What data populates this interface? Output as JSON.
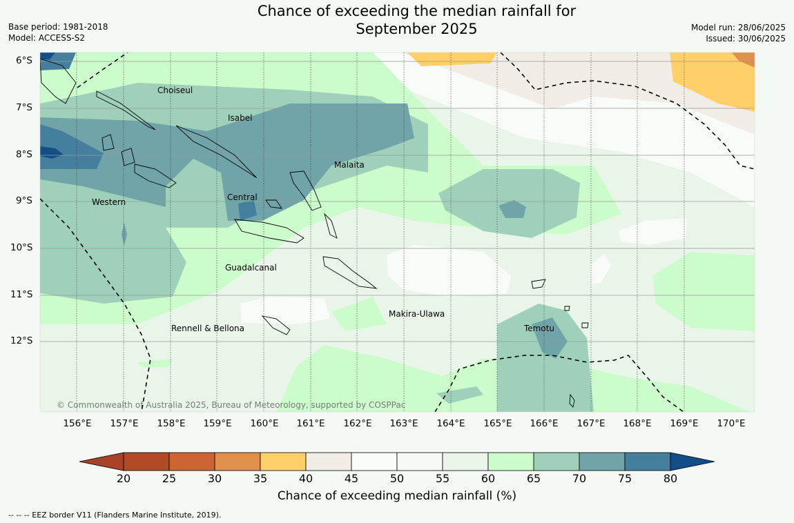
{
  "title_line1": "Chance of exceeding the median rainfall for",
  "title_line2": "September 2025",
  "base_period": "Base period: 1981-2018",
  "model": "Model: ACCESS-S2",
  "model_run": "Model run: 28/06/2025",
  "issued": "Issued: 30/06/2025",
  "lat_labels": [
    "6°S",
    "7°S",
    "8°S",
    "9°S",
    "10°S",
    "11°S",
    "12°S"
  ],
  "lon_labels": [
    "156°E",
    "157°E",
    "158°E",
    "159°E",
    "160°E",
    "161°E",
    "162°E",
    "163°E",
    "164°E",
    "165°E",
    "166°E",
    "167°E",
    "168°E",
    "169°E",
    "170°E"
  ],
  "regions": {
    "choiseul": "Choiseul",
    "isabel": "Isabel",
    "malaita": "Malaita",
    "central": "Central",
    "western": "Western",
    "guadalcanal": "Guadalcanal",
    "makira": "Makira-Ulawa",
    "temotu": "Temotu",
    "rennell": "Rennell & Bellona"
  },
  "copyright": "© Commonwealth of Australia 2025, Bureau of Meteorology, supported by COSPPac",
  "colorbar": {
    "ticks": [
      "20",
      "25",
      "30",
      "35",
      "40",
      "45",
      "50",
      "55",
      "60",
      "65",
      "70",
      "75",
      "80"
    ],
    "colors": [
      "#a8432a",
      "#b24a26",
      "#cc6532",
      "#e0904a",
      "#ffcf6a",
      "#f1ece6",
      "#f8fbf8",
      "#f6faf6",
      "#eaf5ea",
      "#ccfccc",
      "#9fd1ba",
      "#70a4a8",
      "#457f9e",
      "#124e88"
    ],
    "label": "Chance of exceeding median rainfall (%)"
  },
  "footnote": "--  --  -- EEZ border V11 (Flanders Marine Institute, 2019)."
}
